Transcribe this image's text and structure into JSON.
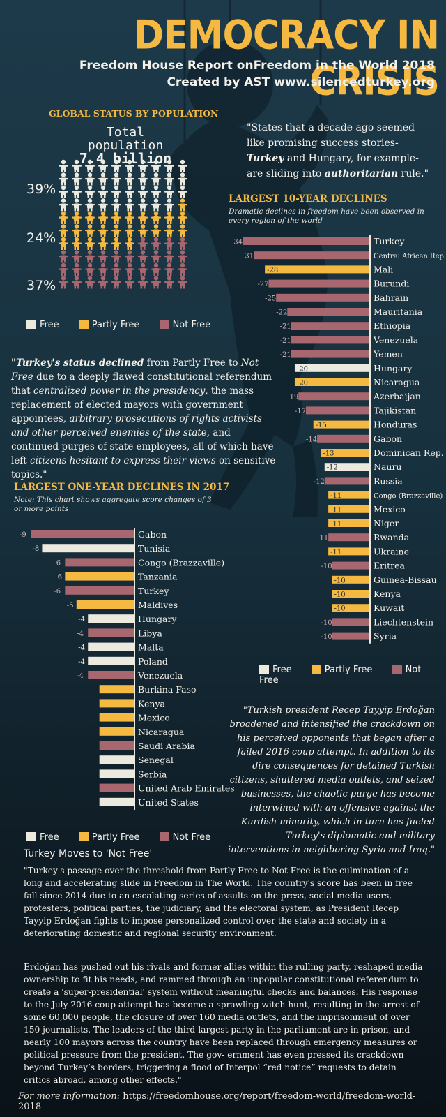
{
  "header": {
    "title": "DEMOCRACY IN CRISIS",
    "subtitle": "Freedom House Report onFreedom in the World 2018",
    "credit": "Created by AST www.silencedturkey.org"
  },
  "colors": {
    "free": "#ece9df",
    "partly_free": "#f5b841",
    "not_free": "#a8666e",
    "accent": "#f5b841"
  },
  "global": {
    "heading": "GLOBAL STATUS BY POPULATION",
    "total_label": "Total population",
    "total_value": "7.4 billion",
    "percentages": [
      {
        "label": "39%",
        "status": "free"
      },
      {
        "label": "24%",
        "status": "partly_free"
      },
      {
        "label": "37%",
        "status": "not_free"
      }
    ]
  },
  "legend": {
    "free": "Free",
    "partly_free": "Partly Free",
    "not_free": "Not Free"
  },
  "quote_top": {
    "part1": "\"States that a decade ago seemed like promising success stories-",
    "turkey": "Turkey",
    "part2": " and Hungary, for example- are sliding into ",
    "authoritarian": "authoritarian",
    "part3": " rule.\""
  },
  "turkey_status": {
    "a": "\"Turkey's status declined",
    "b": " from Partly Free to ",
    "c": "Not Free",
    "d": " due to a deeply flawed constitutional referendum that ",
    "e": "centralized power in the presidency",
    "f": ", the mass replacement of elected mayors with government appointees, ",
    "g": "arbitrary prosecutions of rights activists and other perceived enemies of the state",
    "h": ", and continued purges of state employees, all of which have left ",
    "i": "citizens hesitant to express their views",
    "j": " on sensitive topics.\""
  },
  "quote_erdogan": "\"Turkish president Recep Tayyip Erdoğan broadened and intensified the crackdown on his perceived opponents that began after a failed 2016 coup attempt. In addition to its dire consequences for detained Turkish citizens, shuttered media outlets, and seized businesses, the chaotic purge has become interwined with an offensive against the Kurdish minority, which in turn has fueled Turkey's diplomatic and military interventions in neighboring Syria and Iraq.\"",
  "chart_data": [
    {
      "type": "bar",
      "title": "LARGEST 10-YEAR DECLINES",
      "subtitle": "Dramatic declines in freedom have been observed in every region of the world",
      "categories": [
        "Turkey",
        "Central African Rep.",
        "Mali",
        "Burundi",
        "Bahrain",
        "Mauritania",
        "Ethiopia",
        "Venezuela",
        "Yemen",
        "Hungary",
        "Nicaragua",
        "Azerbaijan",
        "Tajikistan",
        "Honduras",
        "Gabon",
        "Dominican Rep.",
        "Nauru",
        "Russia",
        "Congo (Brazzaville)",
        "Mexico",
        "Niger",
        "Rwanda",
        "Ukraine",
        "Eritrea",
        "Guinea-Bissau",
        "Kenya",
        "Kuwait",
        "Liechtenstein",
        "Syria"
      ],
      "values": [
        -34,
        -31,
        -28,
        -27,
        -25,
        -22,
        -21,
        -21,
        -21,
        -20,
        -20,
        -19,
        -17,
        -15,
        -14,
        -13,
        -12,
        -12,
        -11,
        -11,
        -11,
        -11,
        -11,
        -10,
        -10,
        -10,
        -10,
        -10,
        -10
      ],
      "status": [
        "not_free",
        "not_free",
        "partly_free",
        "not_free",
        "not_free",
        "not_free",
        "not_free",
        "not_free",
        "not_free",
        "free",
        "partly_free",
        "not_free",
        "not_free",
        "partly_free",
        "not_free",
        "partly_free",
        "free",
        "not_free",
        "partly_free",
        "partly_free",
        "partly_free",
        "not_free",
        "partly_free",
        "not_free",
        "partly_free",
        "partly_free",
        "partly_free",
        "not_free",
        "not_free"
      ],
      "xlim": [
        -34,
        0
      ],
      "legend": "bottom"
    },
    {
      "type": "bar",
      "title": "LARGEST ONE-YEAR DECLINES IN 2017",
      "subtitle": "Note: This chart shows aggregate score changes of 3 or more points",
      "categories": [
        "Gabon",
        "Tunisia",
        "Congo (Brazzaville)",
        "Tanzania",
        "Turkey",
        "Maldives",
        "Hungary",
        "Libya",
        "Malta",
        "Poland",
        "Venezuela",
        "Burkina Faso",
        "Kenya",
        "Mexico",
        "Nicaragua",
        "Saudi Arabia",
        "Senegal",
        "Serbia",
        "United Arab Emirates",
        "United States"
      ],
      "values": [
        -9,
        -8,
        -6,
        -6,
        -6,
        -5,
        -4,
        -4,
        -4,
        -4,
        -4,
        -3,
        -3,
        -3,
        -3,
        -3,
        -3,
        -3,
        -3,
        -3
      ],
      "labels": [
        "-9",
        "-8",
        "-6",
        "-6",
        "-6",
        "-5",
        "-4",
        "-4",
        "-4",
        "-4",
        "-4",
        "",
        "",
        "",
        "",
        "",
        "",
        "",
        "",
        ""
      ],
      "status": [
        "not_free",
        "free",
        "not_free",
        "partly_free",
        "not_free",
        "partly_free",
        "free",
        "not_free",
        "free",
        "free",
        "not_free",
        "partly_free",
        "partly_free",
        "partly_free",
        "partly_free",
        "not_free",
        "free",
        "free",
        "not_free",
        "free"
      ],
      "xlim": [
        -9,
        0
      ],
      "legend": "bottom"
    }
  ],
  "turkey_section": {
    "title": "Turkey Moves to 'Not Free'",
    "para1": "\"Turkey's passage over the threshold from Partly Free to Not Free is the culmination of a long and accelerating slide in Freedom in The World. The country's score has been in free fall since 2014 due to an escalating series of assults on the press, social media users, protesters, political parties, the judiciary, and the electoral system, as President Recep Tayyip Erdoğan fights to impose personalized control over the state and society in a deteriorating domestic and regional security environment.",
    "para2": "Erdoğan has pushed out his rivals and former allies within the rulling party, reshaped media ownership to fit his needs, and rammed through an unpopular constitutional referendum to create a 'super-presidential' system without meaningful checks and balances. His response to the July 2016 coup attempt has become a sprawling witch hunt, resulting in the arrest of some 60,000 people, the closure of over 160 media outlets, and the imprisonment of over 150 journalists. The leaders of the third-largest party in the parliament are in prison, and nearly 100 mayors across the country have been replaced through emergency measures or political pressure from the president. The gov- ernment has even pressed its crackdown beyond Turkey’s borders, triggering a flood of Interpol “red notice” requests to detain critics abroad, among other effects.\""
  },
  "footer": {
    "label": "For more information:",
    "url": " https://freedomhouse.org/report/freedom-world/freedom-world-2018"
  }
}
